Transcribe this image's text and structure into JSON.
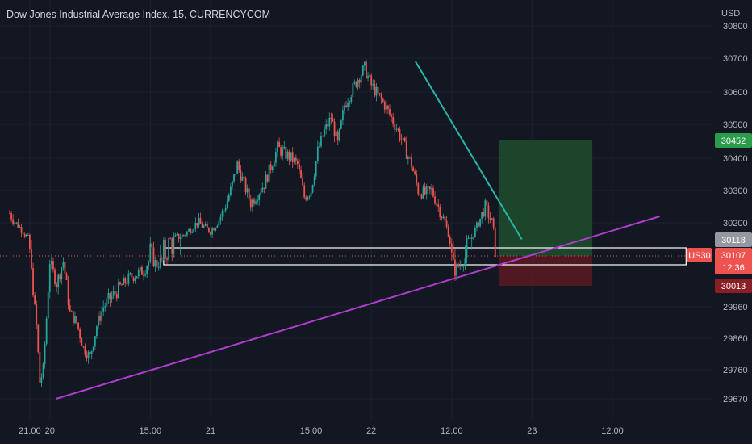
{
  "header": {
    "title": "Dow Jones Industrial Average Index, 15, CURRENCYCOM"
  },
  "price_axis": {
    "currency": "USD",
    "ticks": [
      30800,
      30700,
      30600,
      30500,
      30400,
      30300,
      30200,
      29960,
      29860,
      29760,
      29670
    ]
  },
  "time_axis": {
    "ticks": [
      {
        "label": "21:00",
        "t": 3
      },
      {
        "label": "20",
        "t": 6
      },
      {
        "label": "15:00",
        "t": 21
      },
      {
        "label": "21",
        "t": 30
      },
      {
        "label": "15:00",
        "t": 45
      },
      {
        "label": "22",
        "t": 54
      },
      {
        "label": "12:00",
        "t": 66
      },
      {
        "label": "23",
        "t": 78
      },
      {
        "label": "12:00",
        "t": 90
      }
    ]
  },
  "badges": {
    "target": "30452",
    "zone_top": "30118",
    "symbol": "US30",
    "last": "30107",
    "countdown": "12:36",
    "stop": "30013"
  },
  "colors": {
    "up": "#26a69a",
    "down": "#ef5350",
    "trendline_support": "#b03cd0",
    "trendline_resistance": "#29b5a8",
    "target_zone": "#1e4d2e",
    "stop_zone": "#5c1a22",
    "badge_target": "#2a9d4a",
    "badge_stop": "#8b1d25",
    "badge_zone": "#9598a1"
  },
  "chart_data": {
    "type": "candlestick",
    "title": "Dow Jones Industrial Average Index, 15, CURRENCYCOM",
    "x_unit": "hours since 19th 18:00",
    "price_path": [
      [
        0,
        30230
      ],
      [
        2,
        30160
      ],
      [
        3,
        30110
      ],
      [
        4,
        29900
      ],
      [
        4.5,
        29720
      ],
      [
        5,
        29760
      ],
      [
        6,
        30090
      ],
      [
        7,
        30020
      ],
      [
        8,
        30090
      ],
      [
        9,
        29940
      ],
      [
        10,
        29910
      ],
      [
        11,
        29830
      ],
      [
        12,
        29800
      ],
      [
        13,
        29900
      ],
      [
        14,
        29960
      ],
      [
        16,
        30000
      ],
      [
        18,
        30040
      ],
      [
        20,
        30060
      ],
      [
        21,
        30100
      ],
      [
        22,
        30080
      ],
      [
        24,
        30120
      ],
      [
        26,
        30140
      ],
      [
        28,
        30200
      ],
      [
        30,
        30160
      ],
      [
        32,
        30240
      ],
      [
        33,
        30300
      ],
      [
        34,
        30380
      ],
      [
        35,
        30320
      ],
      [
        36,
        30260
      ],
      [
        38,
        30320
      ],
      [
        40,
        30430
      ],
      [
        42,
        30400
      ],
      [
        43,
        30380
      ],
      [
        44,
        30280
      ],
      [
        45,
        30300
      ],
      [
        46,
        30420
      ],
      [
        47,
        30480
      ],
      [
        48,
        30520
      ],
      [
        49,
        30440
      ],
      [
        50,
        30560
      ],
      [
        51,
        30600
      ],
      [
        52,
        30640
      ],
      [
        53,
        30670
      ],
      [
        54,
        30620
      ],
      [
        55,
        30590
      ],
      [
        56,
        30560
      ],
      [
        58,
        30480
      ],
      [
        60,
        30380
      ],
      [
        61,
        30300
      ],
      [
        62,
        30290
      ],
      [
        63,
        30300
      ],
      [
        64,
        30250
      ],
      [
        65,
        30200
      ],
      [
        66,
        30100
      ],
      [
        66.5,
        30060
      ],
      [
        67,
        30075
      ],
      [
        68,
        30100
      ],
      [
        69,
        30130
      ],
      [
        70,
        30200
      ],
      [
        71,
        30250
      ],
      [
        72,
        30200
      ],
      [
        72.5,
        30120
      ]
    ],
    "trendlines": [
      {
        "from": [
          4.5,
          29670
        ],
        "to": [
          92,
          30220
        ]
      },
      {
        "from": [
          53,
          30690
        ],
        "to": [
          69,
          30120
        ]
      }
    ],
    "horizontal_zone": {
      "from": 23,
      "to": 101,
      "top": 30118,
      "bottom": 30070
    },
    "position": {
      "from": 73,
      "to": 87,
      "entry": 30107,
      "target": 30452,
      "stop": 30013
    },
    "last_price": 30107,
    "ylim": [
      29640,
      30820
    ],
    "xlim": [
      0,
      106
    ]
  }
}
